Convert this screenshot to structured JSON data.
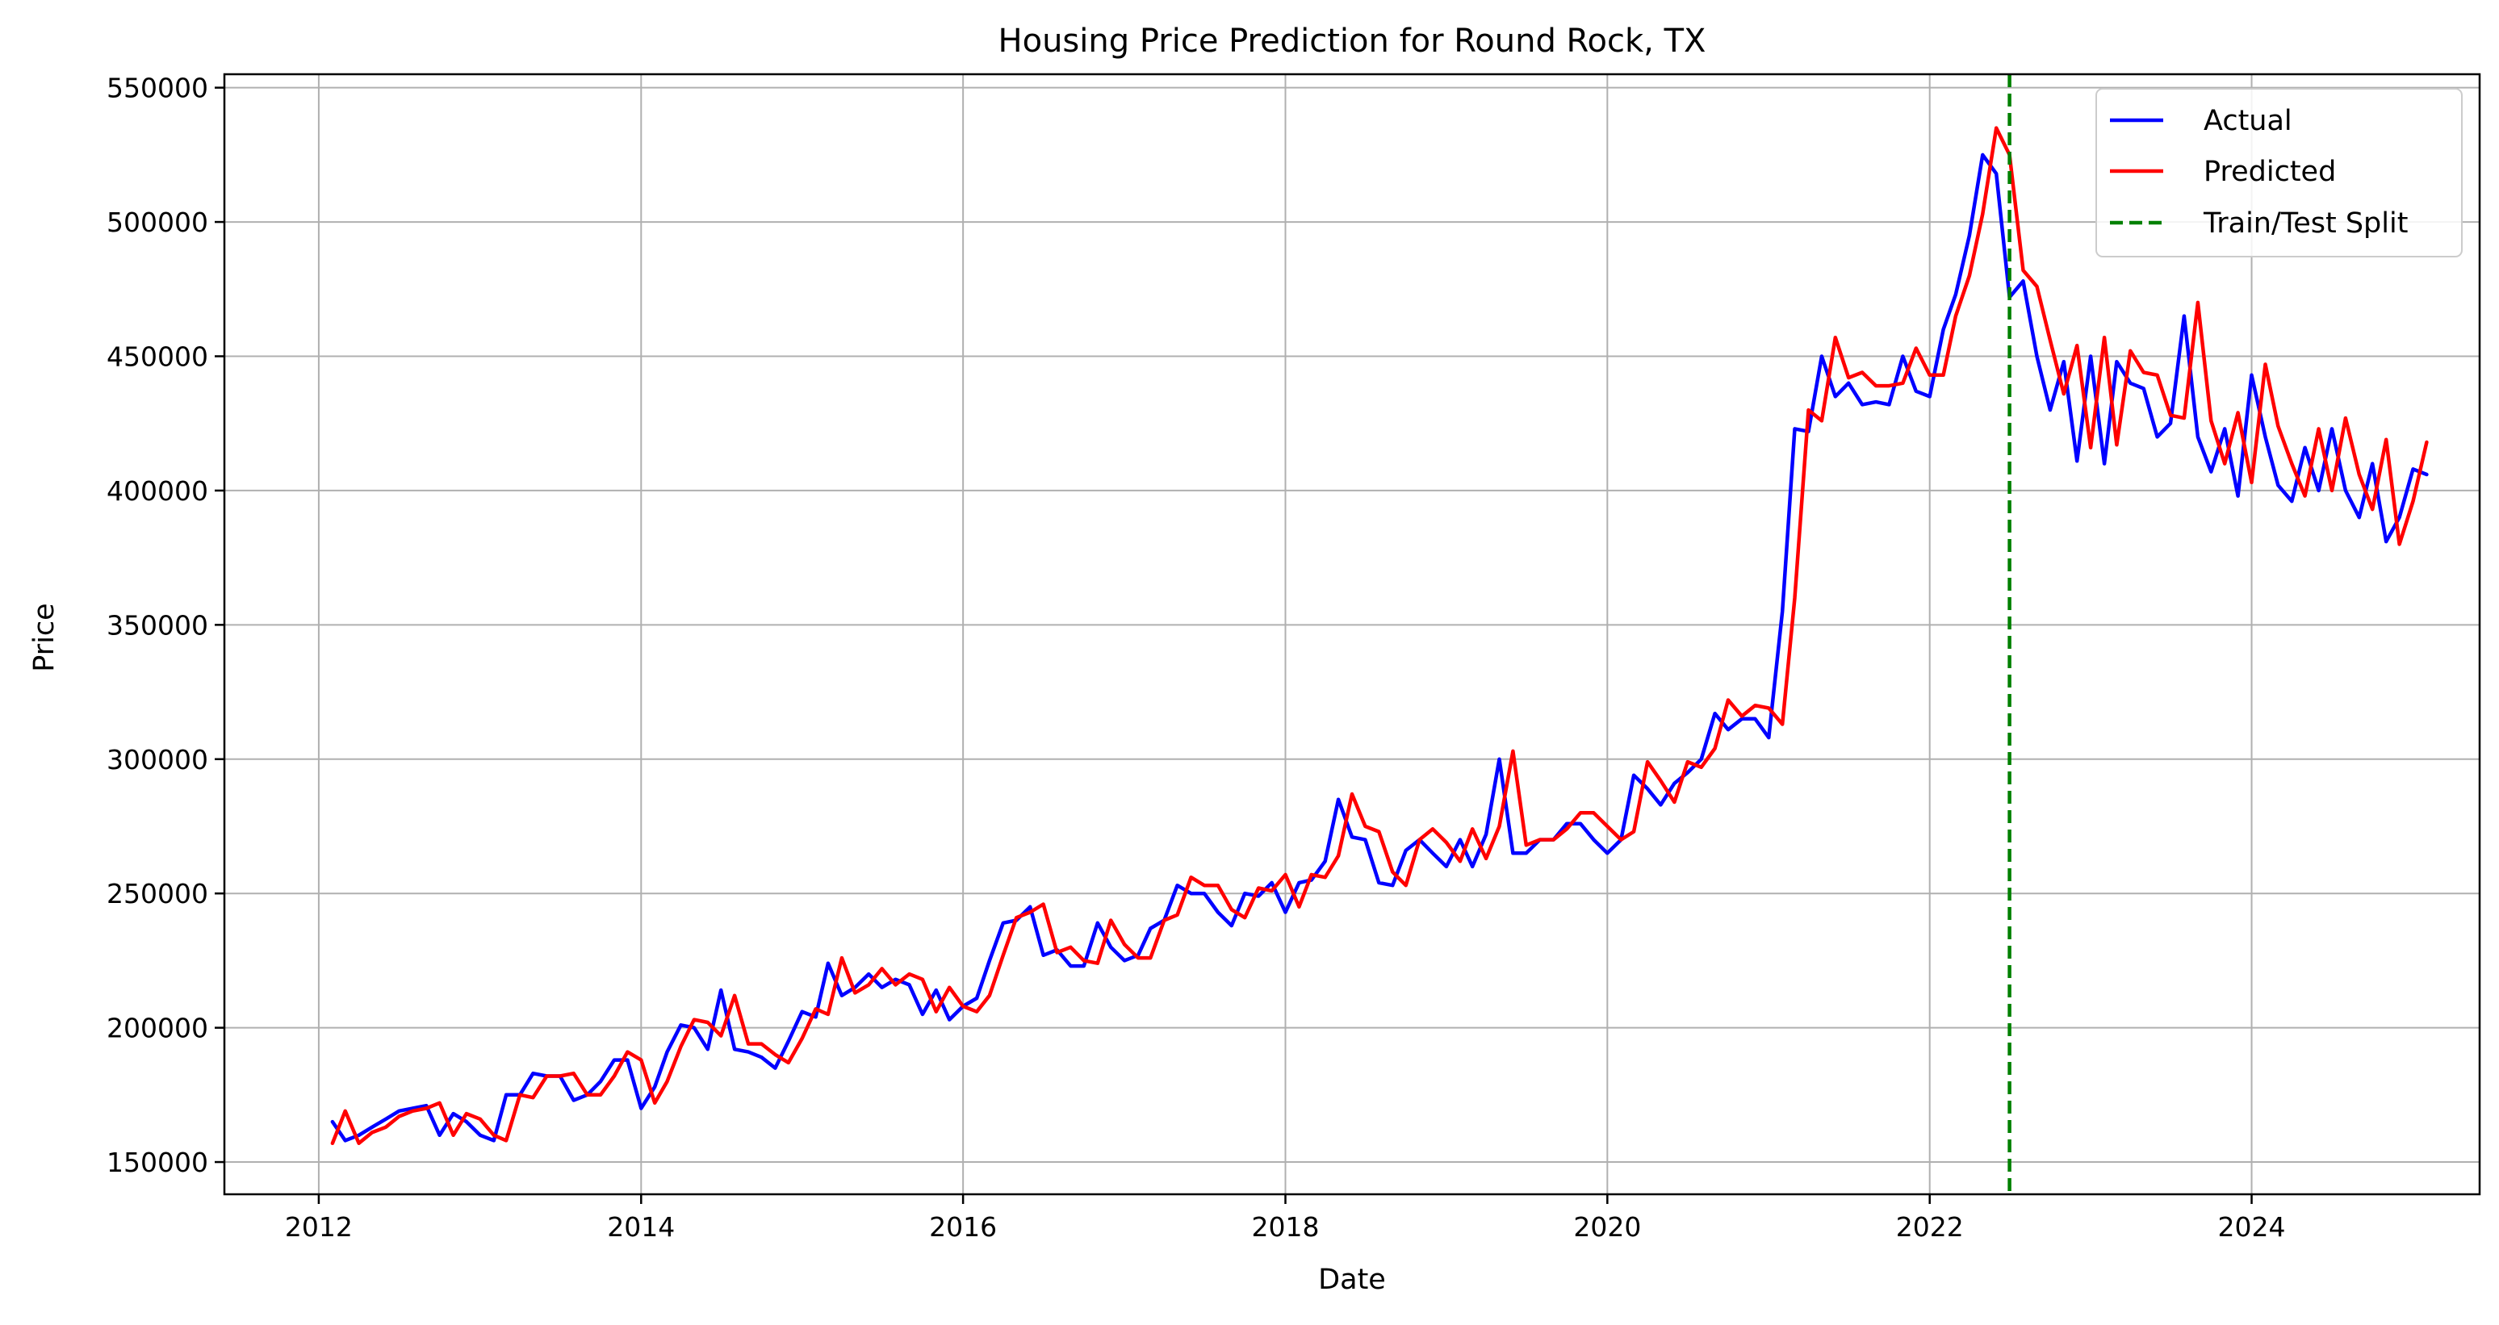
{
  "chart_data": {
    "type": "line",
    "title": "Housing Price Prediction for Round Rock, TX",
    "xlabel": "Date",
    "ylabel": "Price",
    "x_range": [
      "2011-06-01",
      "2025-06-01"
    ],
    "ylim": [
      138000,
      555000
    ],
    "x_ticks": [
      "2012",
      "2014",
      "2016",
      "2018",
      "2020",
      "2022",
      "2024"
    ],
    "x_tick_dates": [
      "2012-01-01",
      "2014-01-01",
      "2016-01-01",
      "2018-01-01",
      "2020-01-01",
      "2022-01-01",
      "2024-01-01"
    ],
    "y_ticks": [
      150000,
      200000,
      250000,
      300000,
      350000,
      400000,
      450000,
      500000,
      550000
    ],
    "grid": true,
    "legend_position": "top-right",
    "colors": {
      "actual": "#0000ff",
      "predicted": "#ff0000",
      "split": "#008000",
      "grid": "#b0b0b0",
      "axes": "#000000"
    },
    "start_month": "2012-02",
    "series": [
      {
        "name": "Actual",
        "values": [
          165000,
          158000,
          160000,
          163000,
          166000,
          169000,
          170000,
          171000,
          160000,
          168000,
          165000,
          160000,
          158000,
          175000,
          175000,
          183000,
          182000,
          182000,
          173000,
          175000,
          180000,
          188000,
          188000,
          170000,
          178000,
          191000,
          201000,
          200000,
          192000,
          214000,
          192000,
          191000,
          189000,
          185000,
          195000,
          206000,
          204000,
          224000,
          212000,
          215000,
          220000,
          215000,
          218000,
          216000,
          205000,
          214000,
          203000,
          208000,
          211000,
          225000,
          239000,
          240000,
          245000,
          227000,
          229000,
          223000,
          223000,
          239000,
          230000,
          225000,
          227000,
          237000,
          240000,
          253000,
          250000,
          250000,
          243000,
          238000,
          250000,
          249000,
          254000,
          243000,
          254000,
          255000,
          262000,
          285000,
          271000,
          270000,
          254000,
          253000,
          266000,
          270000,
          265000,
          260000,
          270000,
          260000,
          272000,
          300000,
          265000,
          265000,
          270000,
          270000,
          276000,
          276000,
          270000,
          265000,
          270000,
          294000,
          289000,
          283000,
          291000,
          295000,
          300000,
          317000,
          311000,
          315000,
          315000,
          308000,
          355000,
          423000,
          422000,
          450000,
          435000,
          440000,
          432000,
          433000,
          432000,
          450000,
          437000,
          435000,
          460000,
          473000,
          495000,
          525000,
          518000,
          472000,
          478000,
          450000,
          430000,
          448000,
          411000,
          450000,
          410000,
          448000,
          440000,
          438000,
          420000,
          425000,
          465000,
          420000,
          407000,
          423000,
          398000,
          443000,
          420000,
          402000,
          396000,
          416000,
          400000,
          423000,
          400000,
          390000,
          410000,
          381000,
          390000,
          408000,
          406000
        ],
        "color": "#0000ff"
      },
      {
        "name": "Predicted",
        "values": [
          157000,
          169000,
          157000,
          161000,
          163000,
          167000,
          169000,
          170000,
          172000,
          160000,
          168000,
          166000,
          160000,
          158000,
          175000,
          174000,
          182000,
          182000,
          183000,
          175000,
          175000,
          182000,
          191000,
          188000,
          172000,
          180000,
          193000,
          203000,
          202000,
          197000,
          212000,
          194000,
          194000,
          190000,
          187000,
          196000,
          207000,
          205000,
          226000,
          213000,
          216000,
          222000,
          216000,
          220000,
          218000,
          206000,
          215000,
          208000,
          206000,
          212000,
          227000,
          241000,
          243000,
          246000,
          228000,
          230000,
          225000,
          224000,
          240000,
          231000,
          226000,
          226000,
          240000,
          242000,
          256000,
          253000,
          253000,
          244000,
          241000,
          252000,
          251000,
          257000,
          245000,
          257000,
          256000,
          264000,
          287000,
          275000,
          273000,
          258000,
          253000,
          270000,
          274000,
          269000,
          262000,
          274000,
          263000,
          275000,
          303000,
          268000,
          270000,
          270000,
          274000,
          280000,
          280000,
          275000,
          270000,
          273000,
          299000,
          292000,
          284000,
          299000,
          297000,
          304000,
          322000,
          316000,
          320000,
          319000,
          313000,
          360000,
          430000,
          426000,
          457000,
          442000,
          444000,
          439000,
          439000,
          440000,
          453000,
          443000,
          443000,
          465000,
          480000,
          503000,
          535000,
          525000,
          482000,
          476000,
          456000,
          436000,
          454000,
          416000,
          457000,
          417000,
          452000,
          444000,
          443000,
          428000,
          427000,
          470000,
          426000,
          410000,
          429000,
          403000,
          447000,
          424000,
          410000,
          398000,
          423000,
          400000,
          427000,
          406000,
          393000,
          419000,
          380000,
          396000,
          418000
        ],
        "color": "#ff0000"
      }
    ],
    "split_date": "2022-07-01",
    "legend": [
      "Actual",
      "Predicted",
      "Train/Test Split"
    ]
  }
}
